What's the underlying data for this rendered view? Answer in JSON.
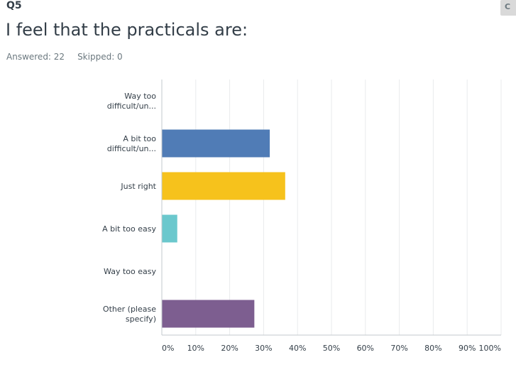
{
  "question": {
    "number": "Q5",
    "title": "I feel that the practicals are:",
    "answered": "Answered: 22",
    "skipped": "Skipped: 0"
  },
  "corner_button": {
    "label": "C"
  },
  "chart_data": {
    "type": "bar",
    "orientation": "horizontal",
    "categories": [
      [
        "Way too",
        "difficult/un..."
      ],
      [
        "A bit too",
        "difficult/un..."
      ],
      [
        "Just right"
      ],
      [
        "A bit too easy"
      ],
      [
        "Way too easy"
      ],
      [
        "Other (please",
        "specify)"
      ]
    ],
    "values": [
      0,
      31.82,
      36.36,
      4.55,
      0,
      27.27
    ],
    "colors": [
      "#6bd1d1",
      "#507cb6",
      "#f6c21c",
      "#6bc8cd",
      "#8f8f8f",
      "#7d5e90"
    ],
    "xlim": [
      0,
      100
    ],
    "xticks": [
      "0%",
      "10%",
      "20%",
      "30%",
      "40%",
      "50%",
      "60%",
      "70%",
      "80%",
      "90%",
      "100%"
    ],
    "grid": true,
    "gridline_color": "#e9ebed",
    "axis_color": "#c3c9cc"
  }
}
